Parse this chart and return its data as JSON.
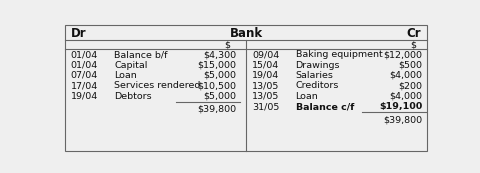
{
  "title": "Bank",
  "dr_label": "Dr",
  "cr_label": "Cr",
  "dollar_sign": "$",
  "left_rows": [
    [
      "01/04",
      "Balance b/f",
      "$4,300"
    ],
    [
      "01/04",
      "Capital",
      "$15,000"
    ],
    [
      "07/04",
      "Loan",
      "$5,000"
    ],
    [
      "17/04",
      "Services rendered",
      "$10,500"
    ],
    [
      "19/04",
      "Debtors",
      "$5,000"
    ]
  ],
  "right_rows": [
    [
      "09/04",
      "Baking equipment",
      "$12,000"
    ],
    [
      "15/04",
      "Drawings",
      "$500"
    ],
    [
      "19/04",
      "Salaries",
      "$4,000"
    ],
    [
      "13/05",
      "Creditors",
      "$200"
    ],
    [
      "13/05",
      "Loan",
      "$4,000"
    ],
    [
      "31/05",
      "Balance c/f",
      "$19,100"
    ]
  ],
  "left_total": "$39,800",
  "right_total": "$39,800",
  "bg_color": "#efefef",
  "border_color": "#666666",
  "text_color": "#111111",
  "font_size": 6.8,
  "header_font_size": 8.5
}
